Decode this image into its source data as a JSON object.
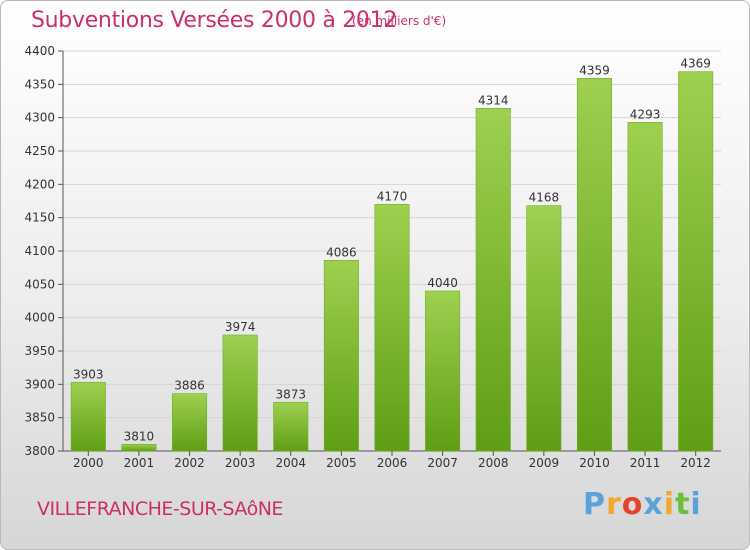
{
  "header": {
    "title": "Subventions Versées 2000 à 2012",
    "subtitle": "(en milliers d'€)"
  },
  "footer": {
    "city": "VILLEFRANCHE-SUR-SAôNE",
    "logo": "Proxiti"
  },
  "colors": {
    "title": "#cc2e6b",
    "bar_light": "#9fd050",
    "bar_dark": "#5f9e14",
    "grid": "#d4d4d4",
    "logo_letters": [
      "#5aa3d8",
      "#f0a830",
      "#e2432a",
      "#5aa3d8",
      "#f0a830",
      "#6abf3e",
      "#5aa3d8"
    ]
  },
  "chart_data": {
    "type": "bar",
    "title": "Subventions Versées 2000 à 2012",
    "subtitle": "(en milliers d'€)",
    "categories": [
      "2000",
      "2001",
      "2002",
      "2003",
      "2004",
      "2005",
      "2006",
      "2007",
      "2008",
      "2009",
      "2010",
      "2011",
      "2012"
    ],
    "values": [
      3903,
      3810,
      3886,
      3974,
      3873,
      4086,
      4170,
      4040,
      4314,
      4168,
      4359,
      4293,
      4369
    ],
    "ylim": [
      3800,
      4400
    ],
    "yticks": [
      3800,
      3850,
      3900,
      3950,
      4000,
      4050,
      4100,
      4150,
      4200,
      4250,
      4300,
      4350,
      4400
    ],
    "grid": true,
    "data_labels": true
  }
}
